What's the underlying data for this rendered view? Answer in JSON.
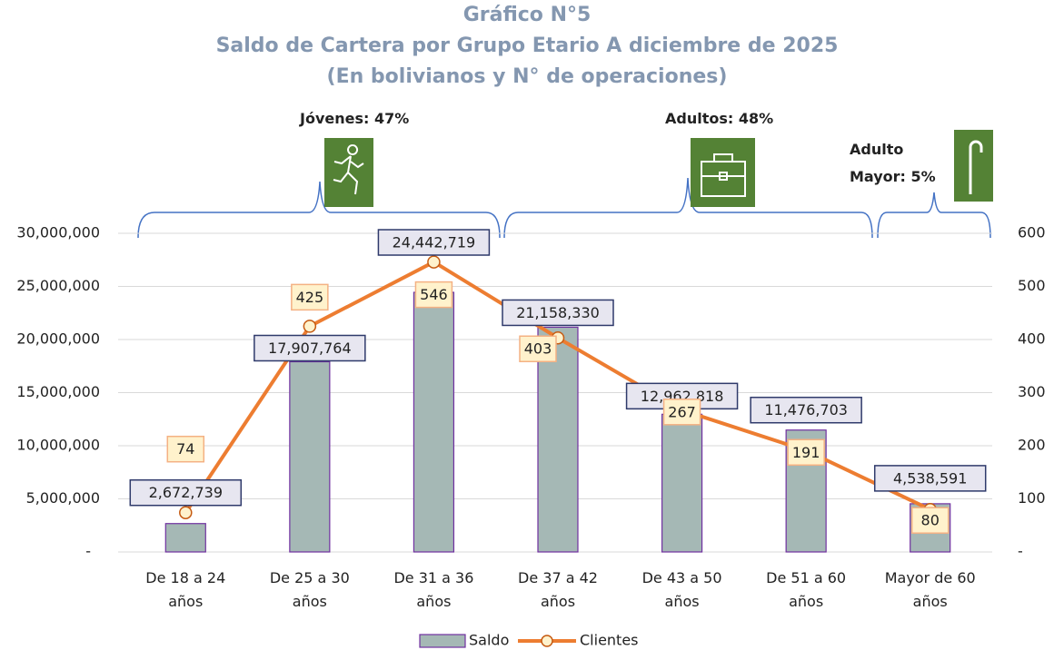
{
  "chart_data": {
    "type": "bar-line",
    "title": [
      "Gráfico N°5",
      "Saldo de Cartera por Grupo Etario A diciembre de 2025",
      "(En bolivianos y N° de operaciones)"
    ],
    "annotations": [
      "Jóvenes: 47%",
      "Adultos: 48%",
      "Adulto Mayor: 5%"
    ],
    "categories": [
      "De 18 a 24 años",
      "De 25 a 30 años",
      "De 31 a 36 años",
      "De 37 a 42 años",
      "De 43 a 50 años",
      "De 51 a 60 años",
      "Mayor de 60 años"
    ],
    "series": [
      {
        "name": "Saldo",
        "type": "bar",
        "color": "#a5b8b5",
        "values": [
          2672739,
          17907764,
          24442719,
          21158330,
          12962818,
          11476703,
          4538591
        ],
        "value_labels": [
          "2,672,739",
          "17,907,764",
          "24,442,719",
          "21,158,330",
          "12,962,818",
          "11,476,703",
          "4,538,591"
        ]
      },
      {
        "name": "Clientes",
        "type": "line",
        "axis": "y2",
        "color": "#ed7d31",
        "values": [
          74,
          425,
          546,
          403,
          267,
          191,
          80
        ]
      }
    ],
    "ylim": [
      0,
      30000000
    ],
    "yticks": [
      {
        "value": 0,
        "label": "-"
      },
      {
        "value": 5000000,
        "label": "5,000,000"
      },
      {
        "value": 10000000,
        "label": "10,000,000"
      },
      {
        "value": 15000000,
        "label": "15,000,000"
      },
      {
        "value": 20000000,
        "label": "20,000,000"
      },
      {
        "value": 25000000,
        "label": "25,000,000"
      },
      {
        "value": 30000000,
        "label": "30,000,000"
      }
    ],
    "y2lim": [
      0,
      600
    ],
    "y2ticks": [
      {
        "value": 0,
        "label": "-"
      },
      100,
      200,
      300,
      400,
      500,
      600
    ],
    "grid": true
  }
}
